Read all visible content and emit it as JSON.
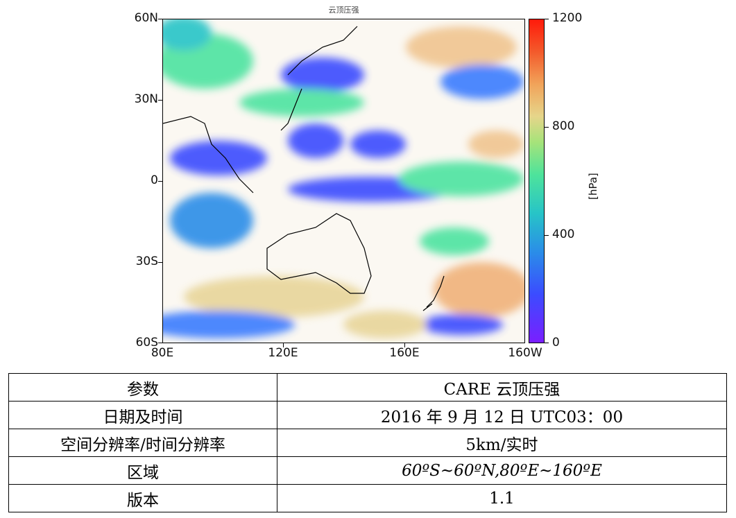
{
  "figure": {
    "title": "云顶压强",
    "lat_ticks": [
      "60N",
      "30N",
      "0",
      "30S",
      "60S"
    ],
    "lon_ticks": [
      "80E",
      "120E",
      "160E",
      "160W"
    ],
    "colorbar": {
      "ticks": [
        "1200",
        "800",
        "400",
        "0"
      ],
      "label": "[hPa]",
      "range": [
        0,
        1200
      ]
    },
    "colors": {
      "low": "#7a1fff",
      "mid": "#4ee39b",
      "high": "#ff1a0a"
    }
  },
  "table": {
    "rows": [
      {
        "key": "参数",
        "value": "CARE 云顶压强"
      },
      {
        "key": "日期及时间",
        "value": "2016 年 9 月 12 日 UTC03：00"
      },
      {
        "key": "空间分辨率/时间分辨率",
        "value": "5km/实时"
      },
      {
        "key": "区域",
        "value": "60ºS~60ºN,80ºE~160ºE"
      },
      {
        "key": "版本",
        "value": "1.1"
      }
    ]
  }
}
